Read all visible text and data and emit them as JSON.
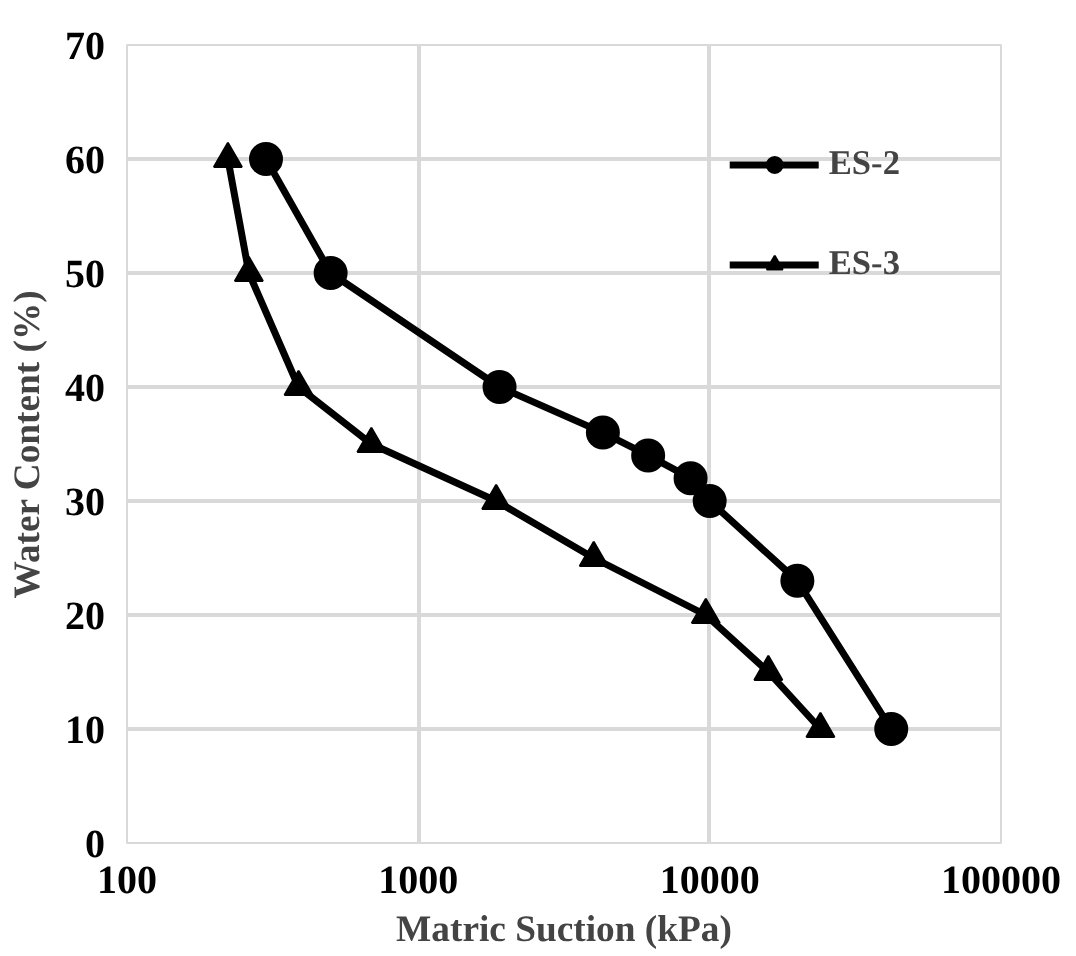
{
  "chart_data": {
    "type": "line",
    "xlabel": "Matric Suction (kPa)",
    "ylabel": "Water Content (%)",
    "log": "x",
    "xlim": [
      100,
      100000
    ],
    "xticks": [
      100,
      1000,
      10000,
      100000
    ],
    "ylim": [
      0,
      70
    ],
    "yticks": [
      0,
      10,
      20,
      30,
      40,
      50,
      60,
      70
    ],
    "grid": true,
    "legend": "top right",
    "series": [
      {
        "name": "ES-2",
        "color": "#000000",
        "marker": "circle",
        "x": [
          300,
          500,
          1900,
          4300,
          6150,
          8600,
          10000,
          20000,
          42000
        ],
        "values": [
          60,
          50,
          40,
          36,
          34,
          32,
          30,
          23,
          10
        ]
      },
      {
        "name": "ES-3",
        "color": "#000000",
        "marker": "triangle",
        "x": [
          222,
          262,
          388,
          690,
          1850,
          4000,
          9700,
          15900,
          24000
        ],
        "values": [
          60,
          50,
          40,
          35,
          30,
          25,
          20,
          15,
          10
        ]
      }
    ]
  }
}
